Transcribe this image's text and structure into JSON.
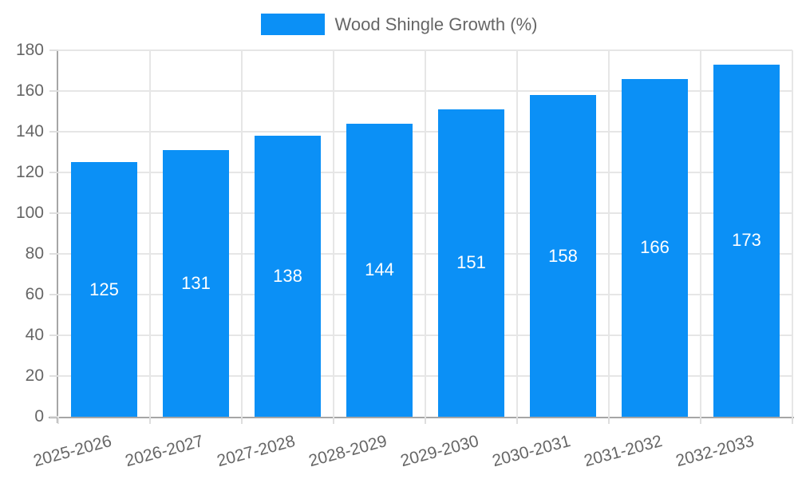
{
  "legend": {
    "label": "Wood Shingle Growth (%)"
  },
  "chart_data": {
    "type": "bar",
    "title": "",
    "categories": [
      "2025-2026",
      "2026-2027",
      "2027-2028",
      "2028-2029",
      "2029-2030",
      "2030-2031",
      "2031-2032",
      "2032-2033"
    ],
    "series": [
      {
        "name": "Wood Shingle Growth (%)",
        "values": [
          125,
          131,
          138,
          144,
          151,
          158,
          166,
          173
        ]
      }
    ],
    "xlabel": "",
    "ylabel": "",
    "ylim": [
      0,
      180
    ],
    "yticks": [
      0,
      20,
      40,
      60,
      80,
      100,
      120,
      140,
      160,
      180
    ],
    "grid": true,
    "legend_position": "top-center",
    "value_labels_position": "center-inside-bars",
    "bar_color": "#0b90f6",
    "value_label_color": "#ffffff",
    "grid_color": "#e6e6e6",
    "axis_color": "#a6a6a6",
    "text_color": "#666666",
    "background_color": "#ffffff"
  }
}
